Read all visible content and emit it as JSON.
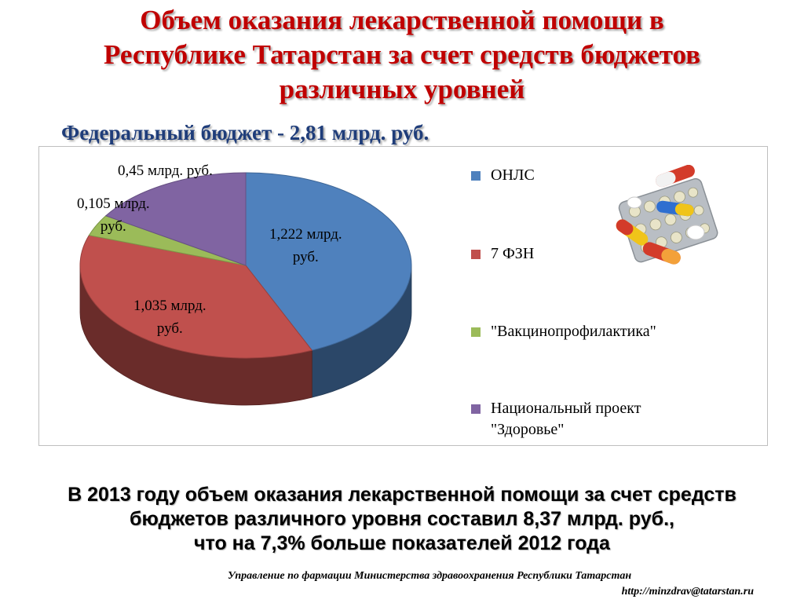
{
  "slide": {
    "title_lines": [
      "Объем оказания лекарственной помощи в",
      "Республике Татарстан за счет средств бюджетов",
      "различных уровней"
    ],
    "subtitle": "Федеральный бюджет - 2,81 млрд. руб.",
    "summary_lines": [
      "В 2013 году объем оказания лекарственной помощи за счет средств",
      "бюджетов различного уровня  составил  8,37  млрд. руб.,",
      "что на 7,3% больше показателей 2012 года"
    ],
    "footer": {
      "org": "Управление по фармации Министерства здравоохранения Республики Татарстан",
      "url": "http://minzdrav@tatarstan.ru"
    },
    "decor": {
      "pills_image": "pills-blister-icon"
    }
  },
  "chart_data": {
    "type": "pie",
    "title": "",
    "unit": "млрд. руб.",
    "legend_position": "right",
    "slices": [
      {
        "legend": "ОНЛС",
        "value": 1.222,
        "label_lines": [
          "1,222 млрд.",
          "руб."
        ],
        "color": "#4f81bd"
      },
      {
        "legend": "7 ФЗН",
        "value": 1.035,
        "label_lines": [
          "1,035 млрд.",
          "руб."
        ],
        "color": "#c0504d"
      },
      {
        "legend": "\"Вакцинопрофилактика\"",
        "value": 0.105,
        "label_lines": [
          "0,105 млрд.",
          "руб."
        ],
        "color": "#9bbb59"
      },
      {
        "legend_lines": [
          "Национальный проект",
          "\"Здоровье\""
        ],
        "value": 0.45,
        "label_lines": [
          "0,45 млрд. руб."
        ],
        "color": "#8064a2"
      }
    ]
  }
}
